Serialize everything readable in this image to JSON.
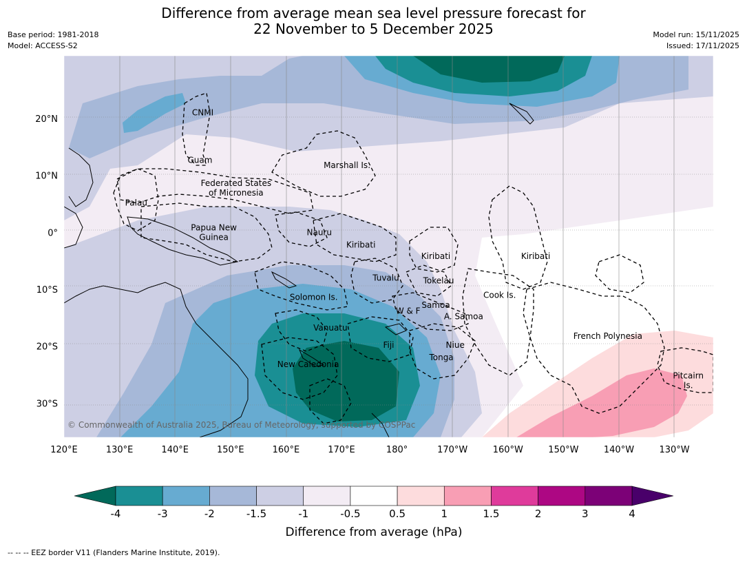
{
  "title_line1": "Difference from average mean sea level pressure forecast for",
  "title_line2": "22 November to 5 December 2025",
  "meta_left": {
    "base_period": "Base period: 1981-2018",
    "model": "Model: ACCESS-S2"
  },
  "meta_right": {
    "model_run": "Model run: 15/11/2025",
    "issued": "Issued: 17/11/2025"
  },
  "map": {
    "lon_range": [
      120,
      237
    ],
    "lat_range": [
      -36,
      31
    ],
    "lon_ticks": [
      {
        "lon": 120,
        "label": "120°E"
      },
      {
        "lon": 130,
        "label": "130°E"
      },
      {
        "lon": 140,
        "label": "140°E"
      },
      {
        "lon": 150,
        "label": "150°E"
      },
      {
        "lon": 160,
        "label": "160°E"
      },
      {
        "lon": 170,
        "label": "170°E"
      },
      {
        "lon": 180,
        "label": "180°"
      },
      {
        "lon": 190,
        "label": "170°W"
      },
      {
        "lon": 200,
        "label": "160°W"
      },
      {
        "lon": 210,
        "label": "150°W"
      },
      {
        "lon": 220,
        "label": "140°W"
      },
      {
        "lon": 230,
        "label": "130°W"
      }
    ],
    "lat_ticks": [
      {
        "lat": 20,
        "label": "20°N"
      },
      {
        "lat": 10,
        "label": "10°N"
      },
      {
        "lat": 0,
        "label": "0°"
      },
      {
        "lat": -10,
        "label": "10°S"
      },
      {
        "lat": -20,
        "label": "20°S"
      },
      {
        "lat": -30,
        "label": "30°S"
      }
    ],
    "places": [
      {
        "lines": [
          "CNMI"
        ],
        "lon": 145.0,
        "lat": 21.0
      },
      {
        "lines": [
          "Guam"
        ],
        "lon": 144.5,
        "lat": 12.7
      },
      {
        "lines": [
          "Marshall Is."
        ],
        "lon": 171.0,
        "lat": 11.8
      },
      {
        "lines": [
          "Federated States",
          "of Micronesia"
        ],
        "lon": 151.0,
        "lat": 7.8
      },
      {
        "lines": [
          "Palau"
        ],
        "lon": 133.0,
        "lat": 5.2
      },
      {
        "lines": [
          "Papua New",
          "Guinea"
        ],
        "lon": 147.0,
        "lat": 0.0
      },
      {
        "lines": [
          "Nauru"
        ],
        "lon": 166.0,
        "lat": 0.0
      },
      {
        "lines": [
          "Kiribati"
        ],
        "lon": 173.5,
        "lat": -2.2
      },
      {
        "lines": [
          "Kiribati"
        ],
        "lon": 187.0,
        "lat": -4.2
      },
      {
        "lines": [
          "Kiribati"
        ],
        "lon": 205.0,
        "lat": -4.2
      },
      {
        "lines": [
          "Tuvalu"
        ],
        "lon": 178.0,
        "lat": -8.0
      },
      {
        "lines": [
          "Tokelau"
        ],
        "lon": 187.5,
        "lat": -8.5
      },
      {
        "lines": [
          "Cook Is."
        ],
        "lon": 198.5,
        "lat": -11.0
      },
      {
        "lines": [
          "Solomon Is."
        ],
        "lon": 165.0,
        "lat": -11.4
      },
      {
        "lines": [
          "Samoa"
        ],
        "lon": 187.0,
        "lat": -12.8
      },
      {
        "lines": [
          "W & F"
        ],
        "lon": 182.0,
        "lat": -13.8
      },
      {
        "lines": [
          "A. Samoa"
        ],
        "lon": 192.0,
        "lat": -14.8
      },
      {
        "lines": [
          "Vanuatu"
        ],
        "lon": 168.0,
        "lat": -16.8
      },
      {
        "lines": [
          "Fiji"
        ],
        "lon": 178.5,
        "lat": -19.8
      },
      {
        "lines": [
          "Niue"
        ],
        "lon": 190.5,
        "lat": -19.8
      },
      {
        "lines": [
          "French Polynesia"
        ],
        "lon": 218.0,
        "lat": -18.2
      },
      {
        "lines": [
          "Tonga"
        ],
        "lon": 188.0,
        "lat": -22.0
      },
      {
        "lines": [
          "New Caledonia"
        ],
        "lon": 164.0,
        "lat": -23.2
      },
      {
        "lines": [
          "Pitcairn",
          "Is."
        ],
        "lon": 232.5,
        "lat": -26.0
      }
    ],
    "copyright": "© Commonwealth of Australia 2025, Bureau of Meteorology, supported by COSPPac"
  },
  "colorbar": {
    "label": "Difference from average (hPa)",
    "boundaries": [
      "-4",
      "-3",
      "-2",
      "-1.5",
      "-1",
      "-0.5",
      "0.5",
      "1",
      "1.5",
      "2",
      "3",
      "4"
    ],
    "colors": [
      "#1a8f94",
      "#67abd1",
      "#a6b8d8",
      "#cdcfe4",
      "#f3ecf4",
      "#ffffff",
      "#fddcdd",
      "#f89eb4",
      "#df3b9b",
      "#ad0783",
      "#7c0177"
    ],
    "low_extend_color": "#01695a",
    "high_extend_color": "#49006a"
  },
  "footnote": "-- -- -- EEZ border V11 (Flanders Marine Institute, 2019)."
}
